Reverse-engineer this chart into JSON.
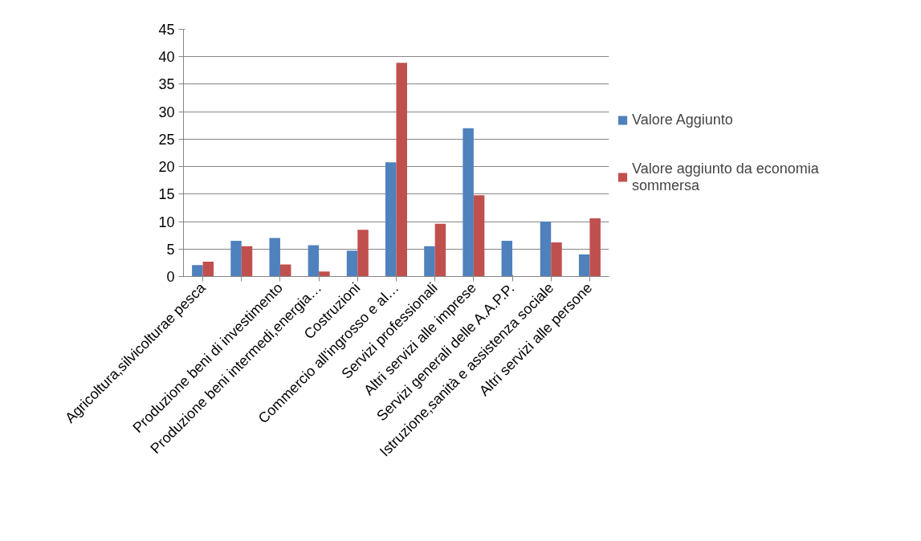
{
  "chart_data": {
    "type": "bar",
    "categories": [
      "Agricoltura,silvicolturae pesca",
      null,
      "Produzione beni di investimento",
      "Produzione beni intermedi,energia…",
      "Costruzioni",
      "Commercio all'ingrosso e al…",
      "Servizi professionali",
      "Altri servizi alle imprese",
      "Servizi generali delle A.A.P.P.",
      "Istruzione,sanità e assistenza sociale",
      "Altri servizi alle persone"
    ],
    "series": [
      {
        "name": "Valore Aggiunto",
        "color": "#4f81bd",
        "values": [
          2.1,
          6.5,
          7.0,
          5.7,
          4.7,
          20.8,
          5.5,
          27.0,
          6.5,
          10.0,
          4.0
        ]
      },
      {
        "name": "Valore aggiunto da economia sommersa",
        "color": "#c0504d",
        "values": [
          2.7,
          5.5,
          2.2,
          0.9,
          8.5,
          38.9,
          9.6,
          14.8,
          null,
          6.2,
          10.6
        ]
      }
    ],
    "ylim": [
      0,
      45
    ],
    "yticks": [
      0,
      5,
      10,
      15,
      20,
      25,
      30,
      35,
      40,
      45
    ],
    "grid": "y",
    "legend": "right"
  }
}
